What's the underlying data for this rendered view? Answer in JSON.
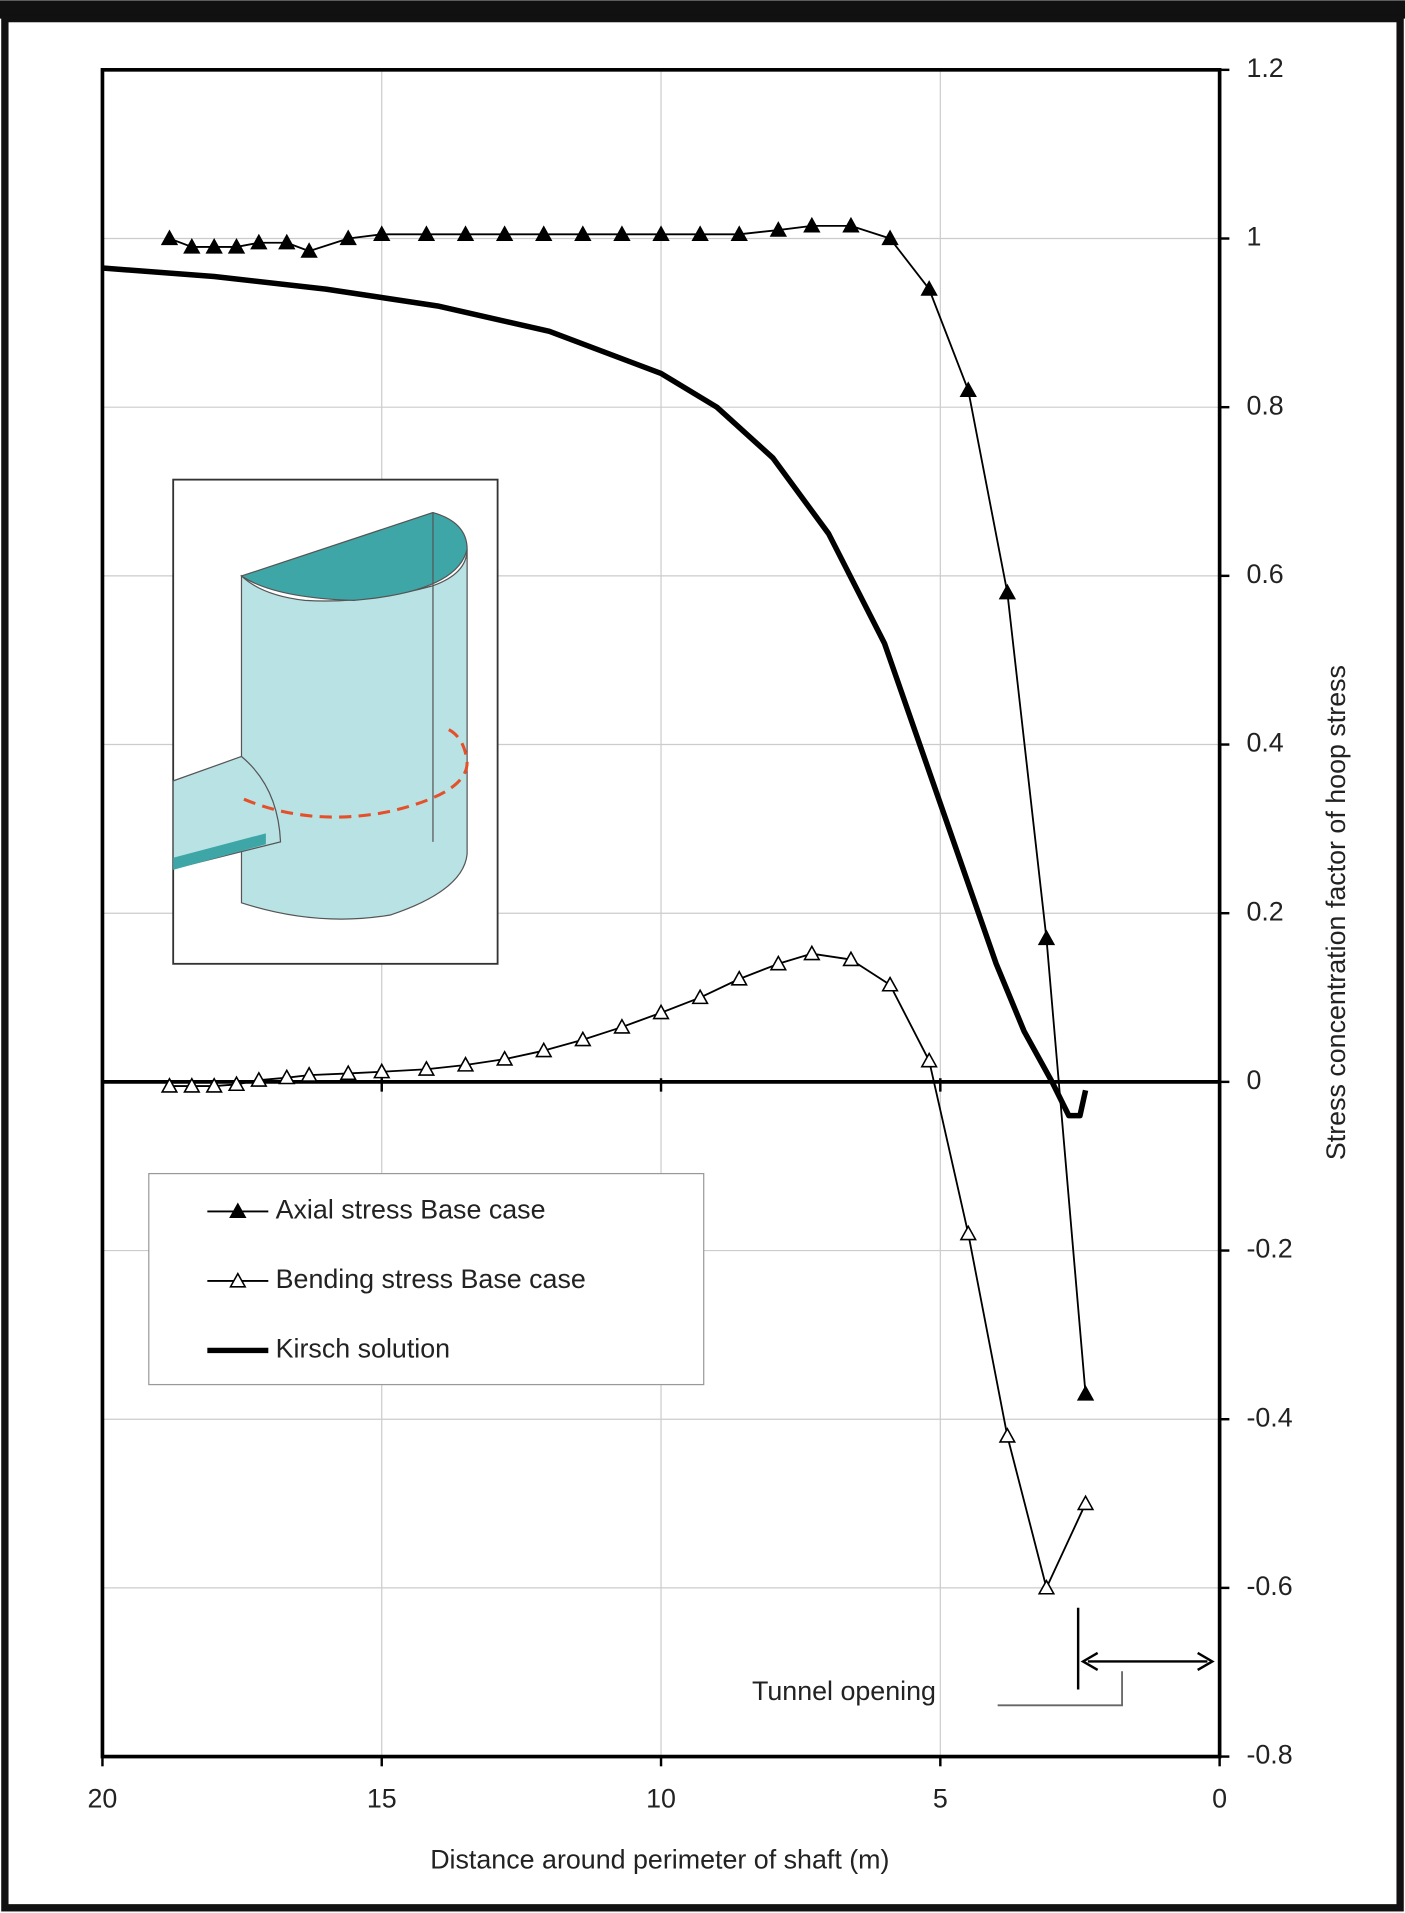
{
  "chart_data": {
    "type": "line",
    "xlabel": "Distance around perimeter of shaft (m)",
    "ylabel": "Stress concentration factor of hoop stress",
    "xlim": [
      20,
      0
    ],
    "xticks": [
      20,
      15,
      10,
      5,
      0
    ],
    "ylim": [
      -0.8,
      1.2
    ],
    "yticks": [
      -0.8,
      -0.6,
      -0.4,
      -0.2,
      0,
      0.2,
      0.4,
      0.6,
      0.8,
      1,
      1.2
    ],
    "grid": true,
    "legend": "lower left",
    "annotations": [
      "Tunnel opening"
    ],
    "series": [
      {
        "name": "Axial stress Base case",
        "color": "#000000",
        "marker": "filled-triangle",
        "x": [
          18.8,
          18.4,
          18.0,
          17.6,
          17.2,
          16.7,
          16.3,
          15.6,
          15.0,
          14.2,
          13.5,
          12.8,
          12.1,
          11.4,
          10.7,
          10.0,
          9.3,
          8.6,
          7.9,
          7.3,
          6.6,
          5.9,
          5.2,
          4.5,
          3.8,
          3.1,
          2.4
        ],
        "values": [
          1.0,
          0.99,
          0.99,
          0.99,
          0.995,
          0.995,
          0.985,
          1.0,
          1.005,
          1.005,
          1.005,
          1.005,
          1.005,
          1.005,
          1.005,
          1.005,
          1.005,
          1.005,
          1.01,
          1.015,
          1.015,
          1.0,
          0.94,
          0.82,
          0.58,
          0.17,
          -0.37
        ]
      },
      {
        "name": "Bending stress Base case",
        "color": "#000000",
        "marker": "open-triangle",
        "x": [
          18.8,
          18.4,
          18.0,
          17.6,
          17.2,
          16.7,
          16.3,
          15.6,
          15.0,
          14.2,
          13.5,
          12.8,
          12.1,
          11.4,
          10.7,
          10.0,
          9.3,
          8.6,
          7.9,
          7.3,
          6.6,
          5.9,
          5.2,
          4.5,
          3.8,
          3.1,
          2.4
        ],
        "values": [
          -0.005,
          -0.005,
          -0.005,
          -0.003,
          0.002,
          0.005,
          0.008,
          0.01,
          0.012,
          0.015,
          0.02,
          0.027,
          0.037,
          0.05,
          0.065,
          0.082,
          0.1,
          0.122,
          0.14,
          0.152,
          0.145,
          0.115,
          0.025,
          -0.18,
          -0.42,
          -0.6,
          -0.5
        ]
      },
      {
        "name": "Kirsch solution",
        "color": "#000000",
        "marker": "none",
        "x": [
          20,
          18,
          16,
          14,
          12,
          10,
          9,
          8,
          7,
          6,
          5,
          4,
          3.5,
          3.0,
          2.7,
          2.5,
          2.4
        ],
        "values": [
          0.965,
          0.955,
          0.94,
          0.92,
          0.89,
          0.84,
          0.8,
          0.74,
          0.65,
          0.52,
          0.33,
          0.14,
          0.06,
          0.0,
          -0.04,
          -0.04,
          -0.01
        ]
      }
    ]
  }
}
